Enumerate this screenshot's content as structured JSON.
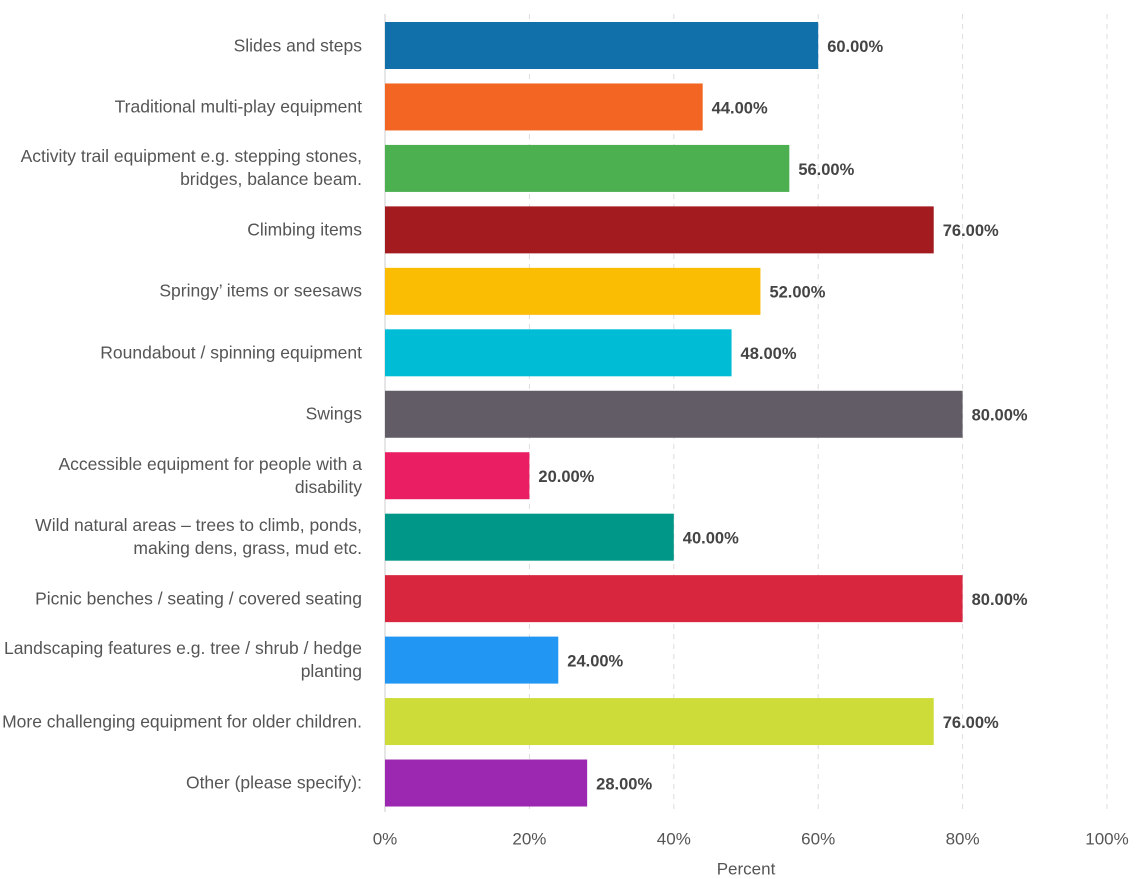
{
  "chart_data": {
    "type": "barh",
    "categories": [
      "Slides and steps",
      "Traditional multi-play equipment",
      "Activity trail equipment e.g. stepping stones, bridges, balance beam.",
      "Climbing items",
      "Springy’ items or seesaws",
      "Roundabout / spinning equipment",
      "Swings",
      "Accessible equipment for people with a disability",
      "Wild natural areas – trees to climb, ponds, making dens, grass, mud etc.",
      "Picnic benches / seating / covered seating",
      "Landscaping features e.g. tree / shrub / hedge planting",
      "More challenging equipment for older children.",
      "Other (please specify):"
    ],
    "values": [
      60,
      44,
      56,
      76,
      52,
      48,
      80,
      20,
      40,
      80,
      24,
      76,
      28
    ],
    "value_labels": [
      "60.00%",
      "44.00%",
      "56.00%",
      "76.00%",
      "52.00%",
      "48.00%",
      "80.00%",
      "20.00%",
      "40.00%",
      "80.00%",
      "24.00%",
      "76.00%",
      "28.00%"
    ],
    "colors": [
      "#1170aa",
      "#f26522",
      "#4caf50",
      "#a31b1f",
      "#fbbc04",
      "#00bcd4",
      "#615c65",
      "#e91e63",
      "#009688",
      "#d7263d",
      "#2196f3",
      "#cddc39",
      "#9c27b0"
    ],
    "xlim": [
      0,
      100
    ],
    "xticks": [
      {
        "value": 0,
        "label": "0%"
      },
      {
        "value": 20,
        "label": "20%"
      },
      {
        "value": 40,
        "label": "40%"
      },
      {
        "value": 60,
        "label": "60%"
      },
      {
        "value": 80,
        "label": "80%"
      },
      {
        "value": 100,
        "label": "100%"
      }
    ],
    "xlabel": "Percent",
    "grid": true
  }
}
